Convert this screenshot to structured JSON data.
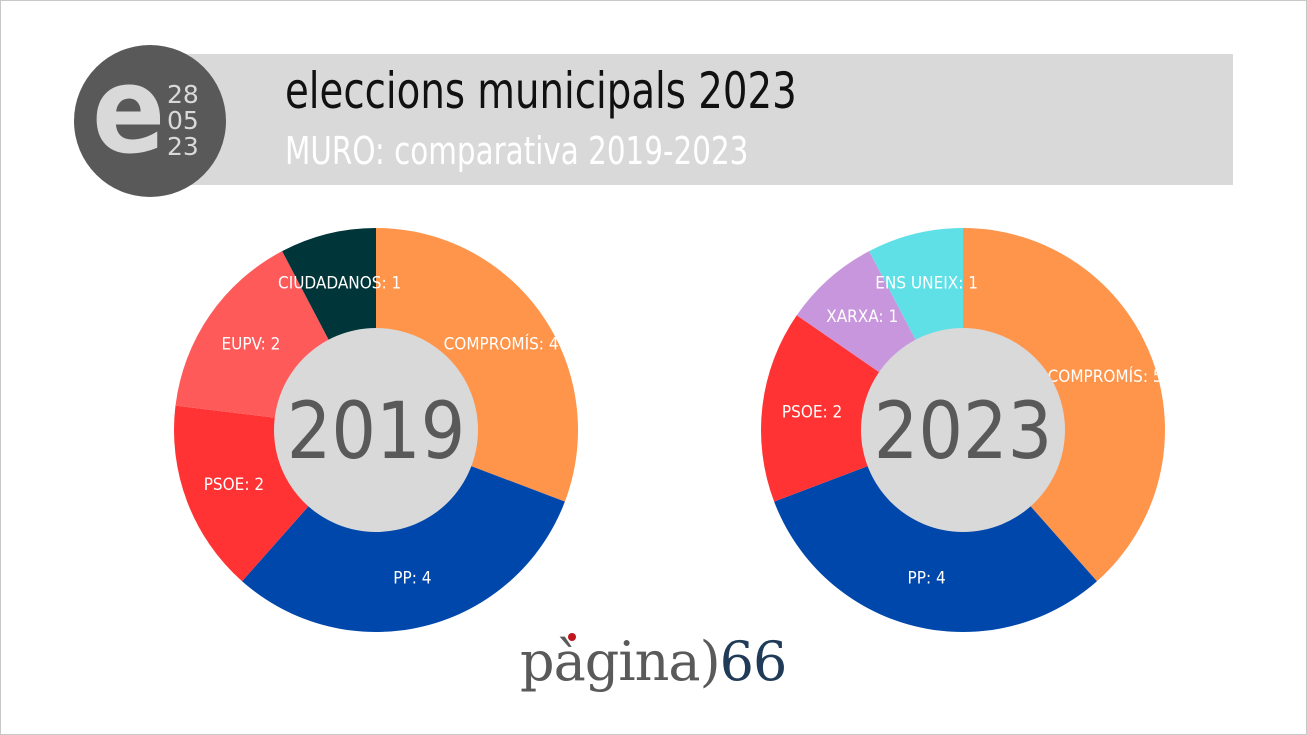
{
  "header": {
    "title": "eleccions municipals 2023",
    "subtitle": "MURO: comparativa 2019-2023",
    "logo_letter": "e",
    "logo_date": [
      "28",
      "05",
      "23"
    ]
  },
  "footer": {
    "brand_word": "pàgina",
    "brand_paren": ")",
    "brand_number": "66"
  },
  "chart_data": [
    {
      "type": "pie",
      "title": "2019",
      "start": "top",
      "direction": "clockwise",
      "slices": [
        {
          "label": "COMPROMÍS: 4",
          "value": 4,
          "color": "#FF944B"
        },
        {
          "label": "PP: 4",
          "value": 4,
          "color": "#0047AB"
        },
        {
          "label": "PSOE: 2",
          "value": 2,
          "color": "#FF3333"
        },
        {
          "label": "EUPV: 2",
          "value": 2,
          "color": "#FF5A5A"
        },
        {
          "label": "CIUDADANOS: 1",
          "value": 1,
          "color": "#00363A"
        }
      ]
    },
    {
      "type": "pie",
      "title": "2023",
      "start": "top",
      "direction": "clockwise",
      "slices": [
        {
          "label": "COMPROMÍS: 5",
          "value": 5,
          "color": "#FF944B"
        },
        {
          "label": "PP: 4",
          "value": 4,
          "color": "#0047AB"
        },
        {
          "label": "PSOE: 2",
          "value": 2,
          "color": "#FF3333"
        },
        {
          "label": "XARXA: 1",
          "value": 1,
          "color": "#C896DC"
        },
        {
          "label": "ENS UNEIX: 1",
          "value": 1,
          "color": "#5EE0E6"
        }
      ]
    }
  ]
}
